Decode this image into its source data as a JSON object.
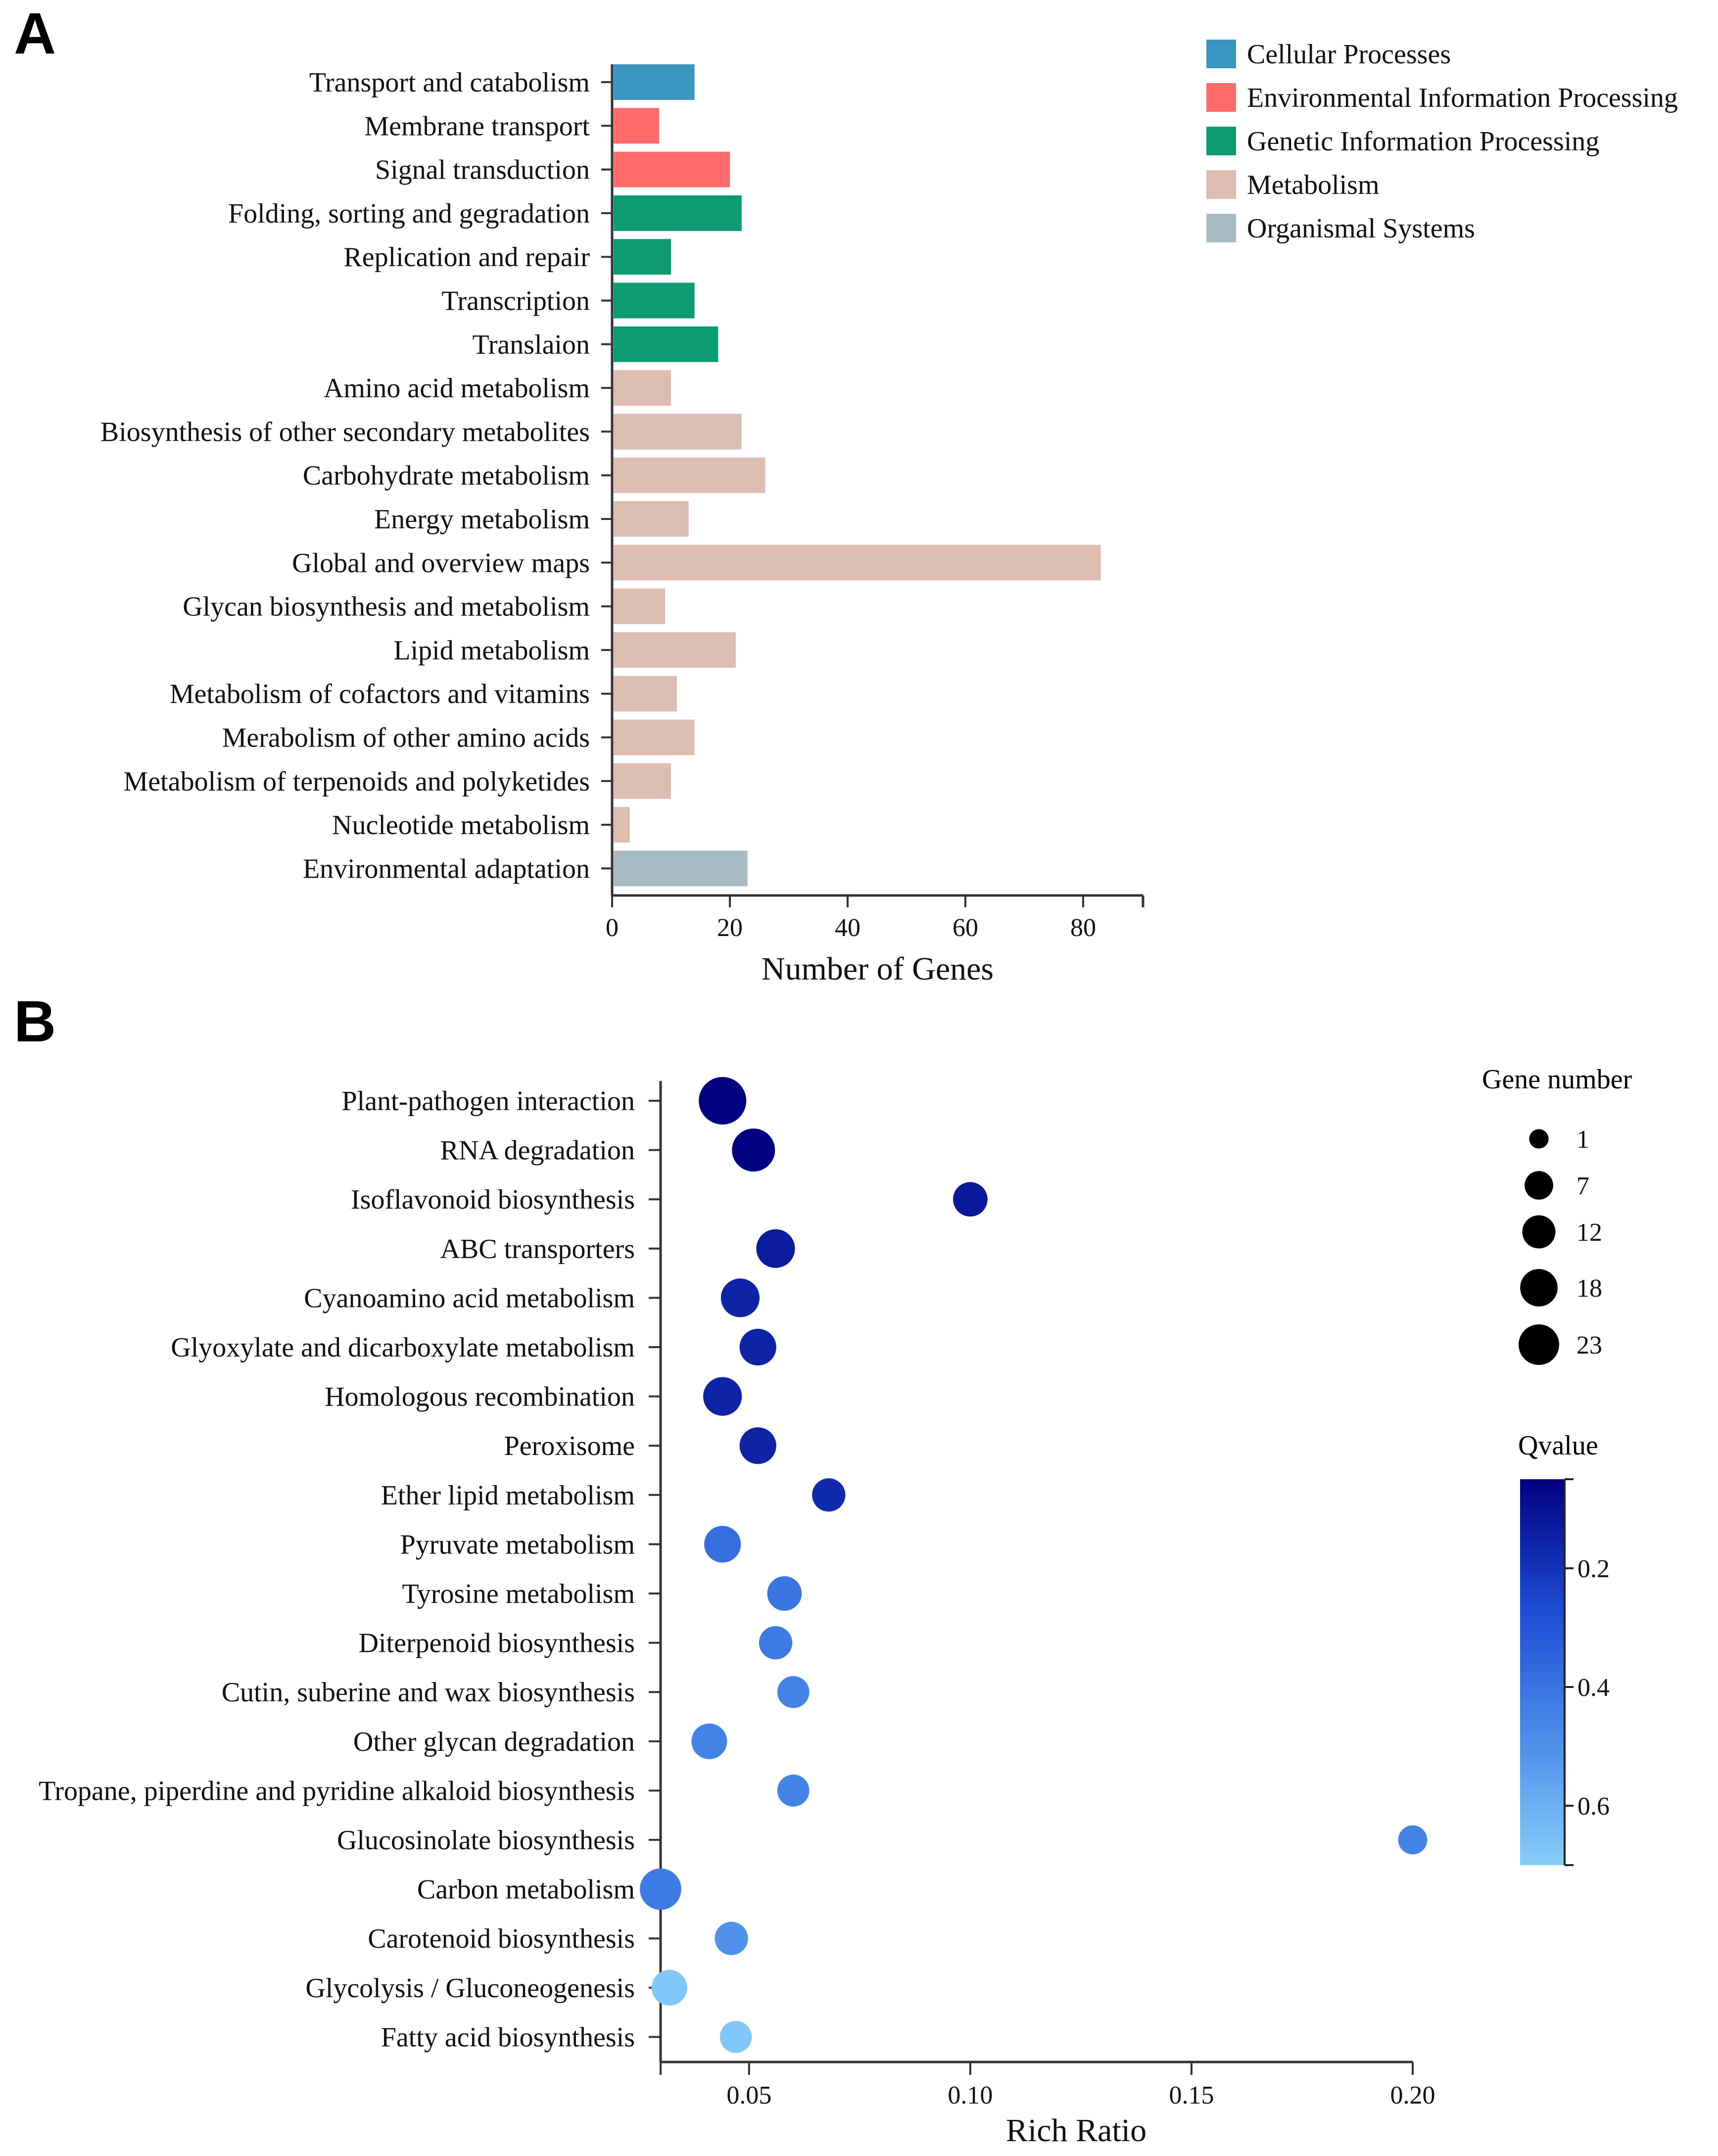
{
  "panel_labels": {
    "a": "A",
    "b": "B"
  },
  "chart_data": [
    {
      "type": "bar",
      "orientation": "horizontal",
      "panel": "A",
      "xlabel": "Number of Genes",
      "xlim": [
        0,
        90
      ],
      "xticks": [
        0,
        20,
        40,
        60,
        80
      ],
      "grid": false,
      "legend_position": "top-right",
      "legend": [
        {
          "name": "Cellular Processes",
          "color": "#3A96BE"
        },
        {
          "name": "Environmental Information Processing",
          "color": "#FF6B6B"
        },
        {
          "name": "Genetic Information Processing",
          "color": "#0E9B72"
        },
        {
          "name": "Metabolism",
          "color": "#DDBDB2"
        },
        {
          "name": "Organismal Systems",
          "color": "#A8BBC2"
        }
      ],
      "categories": [
        "Transport and catabolism",
        "Membrane transport",
        "Signal transduction",
        "Folding, sorting and gegradation",
        "Replication and repair",
        "Transcription",
        "Translaion",
        "Amino acid metabolism",
        "Biosynthesis of other secondary metabolites",
        "Carbohydrate metabolism",
        "Energy metabolism",
        "Global and overview maps",
        "Glycan biosynthesis and metabolism",
        "Lipid metabolism",
        "Metabolism of cofactors and vitamins",
        "Merabolism of other amino acids",
        "Metabolism of terpenoids and polyketides",
        "Nucleotide metabolism",
        "Environmental adaptation"
      ],
      "values": [
        14,
        8,
        20,
        22,
        10,
        14,
        18,
        10,
        22,
        26,
        13,
        83,
        9,
        21,
        11,
        14,
        10,
        3,
        23
      ],
      "groups": [
        0,
        1,
        1,
        2,
        2,
        2,
        2,
        3,
        3,
        3,
        3,
        3,
        3,
        3,
        3,
        3,
        3,
        3,
        4
      ]
    },
    {
      "type": "scatter",
      "panel": "B",
      "xlabel": "Rich Ratio",
      "xlim": [
        0.03,
        0.2
      ],
      "xticks": [
        0.05,
        0.1,
        0.15,
        0.2
      ],
      "xtick_labels": [
        "0.05",
        "0.10",
        "0.15",
        "0.20"
      ],
      "grid": false,
      "size_legend_title": "Gene number",
      "size_legend_values": [
        1,
        7,
        12,
        18,
        23
      ],
      "size_legend_labels": [
        "1",
        "7",
        "12",
        "18",
        "23"
      ],
      "color_legend_title": "Qvalue",
      "color_range": [
        0.05,
        0.7
      ],
      "color_ticks": [
        0.2,
        0.4,
        0.6
      ],
      "color_tick_labels": [
        "0.2",
        "0.4",
        "0.6"
      ],
      "color_low": "#000080",
      "color_high": "#87CEFA",
      "categories": [
        "Plant-pathogen interaction",
        "RNA degradation",
        "Isoflavonoid biosynthesis",
        "ABC transporters",
        "Cyanoamino acid metabolism",
        "Glyoxylate and dicarboxylate metabolism",
        "Homologous recombination",
        "Peroxisome",
        "Ether lipid metabolism",
        "Pyruvate metabolism",
        "Tyrosine metabolism",
        "Diterpenoid biosynthesis",
        "Cutin, suberine and wax biosynthesis",
        "Other glycan degradation",
        "Tropane, piperdine and pyridine alkaloid biosynthesis",
        "Glucosinolate biosynthesis",
        "Carbon metabolism",
        "Carotenoid biosynthesis",
        "Glycolysis / Gluconeogenesis",
        "Fatty acid biosynthesis"
      ],
      "x": [
        0.044,
        0.051,
        0.1,
        0.056,
        0.048,
        0.052,
        0.044,
        0.052,
        0.068,
        0.044,
        0.058,
        0.056,
        0.06,
        0.041,
        0.06,
        0.2,
        0.03,
        0.046,
        0.032,
        0.047
      ],
      "gene_number": [
        23,
        17,
        8,
        12,
        12,
        10,
        12,
        10,
        7,
        10,
        8,
        7,
        6,
        9,
        6,
        4,
        15,
        7,
        9,
        6
      ],
      "qvalue": [
        0.05,
        0.05,
        0.12,
        0.13,
        0.15,
        0.15,
        0.15,
        0.15,
        0.17,
        0.38,
        0.4,
        0.42,
        0.45,
        0.45,
        0.45,
        0.45,
        0.42,
        0.5,
        0.68,
        0.68
      ]
    }
  ]
}
